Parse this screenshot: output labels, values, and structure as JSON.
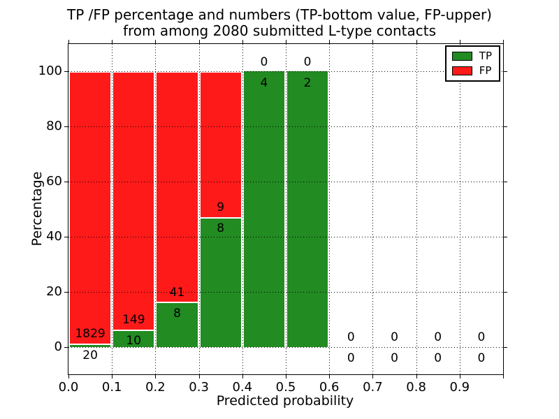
{
  "figure_title": {
    "line1": "TP /FP percentage and numbers (TP-bottom value, FP-upper)",
    "line2": "from among 2080 submitted L-type contacts"
  },
  "chart_data": {
    "type": "bar",
    "stacked": true,
    "title": "TP /FP percentage and numbers (TP-bottom value, FP-upper) from among 2080 submitted L-type contacts",
    "xlabel": "Predicted probability",
    "ylabel": "Percentage",
    "xlim": [
      0.0,
      1.0
    ],
    "ylim": [
      -10,
      110
    ],
    "x_tick_labels": [
      "0.0",
      "0.1",
      "0.2",
      "0.3",
      "0.4",
      "0.5",
      "0.6",
      "0.7",
      "0.8",
      "0.9"
    ],
    "y_ticks": [
      0,
      20,
      40,
      60,
      80,
      100
    ],
    "grid": "dotted",
    "legend_position": "upper right",
    "total_contacts": 2080,
    "series": [
      {
        "name": "TP",
        "color": "#228b22"
      },
      {
        "name": "FP",
        "color": "#ff1a1a"
      }
    ],
    "bins": [
      {
        "range": [
          0.0,
          0.1
        ],
        "tp_count": 20,
        "fp_count": 1829,
        "tp_pct": 1.1,
        "fp_pct": 98.9
      },
      {
        "range": [
          0.1,
          0.2
        ],
        "tp_count": 10,
        "fp_count": 149,
        "tp_pct": 6.3,
        "fp_pct": 93.7
      },
      {
        "range": [
          0.2,
          0.3
        ],
        "tp_count": 8,
        "fp_count": 41,
        "tp_pct": 16.3,
        "fp_pct": 83.7
      },
      {
        "range": [
          0.3,
          0.4
        ],
        "tp_count": 8,
        "fp_count": 9,
        "tp_pct": 47.1,
        "fp_pct": 52.9
      },
      {
        "range": [
          0.4,
          0.5
        ],
        "tp_count": 4,
        "fp_count": 0,
        "tp_pct": 100,
        "fp_pct": 0
      },
      {
        "range": [
          0.5,
          0.6
        ],
        "tp_count": 2,
        "fp_count": 0,
        "tp_pct": 100,
        "fp_pct": 0
      },
      {
        "range": [
          0.6,
          0.7
        ],
        "tp_count": 0,
        "fp_count": 0,
        "tp_pct": 0,
        "fp_pct": 0
      },
      {
        "range": [
          0.7,
          0.8
        ],
        "tp_count": 0,
        "fp_count": 0,
        "tp_pct": 0,
        "fp_pct": 0
      },
      {
        "range": [
          0.8,
          0.9
        ],
        "tp_count": 0,
        "fp_count": 0,
        "tp_pct": 0,
        "fp_pct": 0
      },
      {
        "range": [
          0.9,
          1.0
        ],
        "tp_count": 0,
        "fp_count": 0,
        "tp_pct": 0,
        "fp_pct": 0
      }
    ]
  }
}
